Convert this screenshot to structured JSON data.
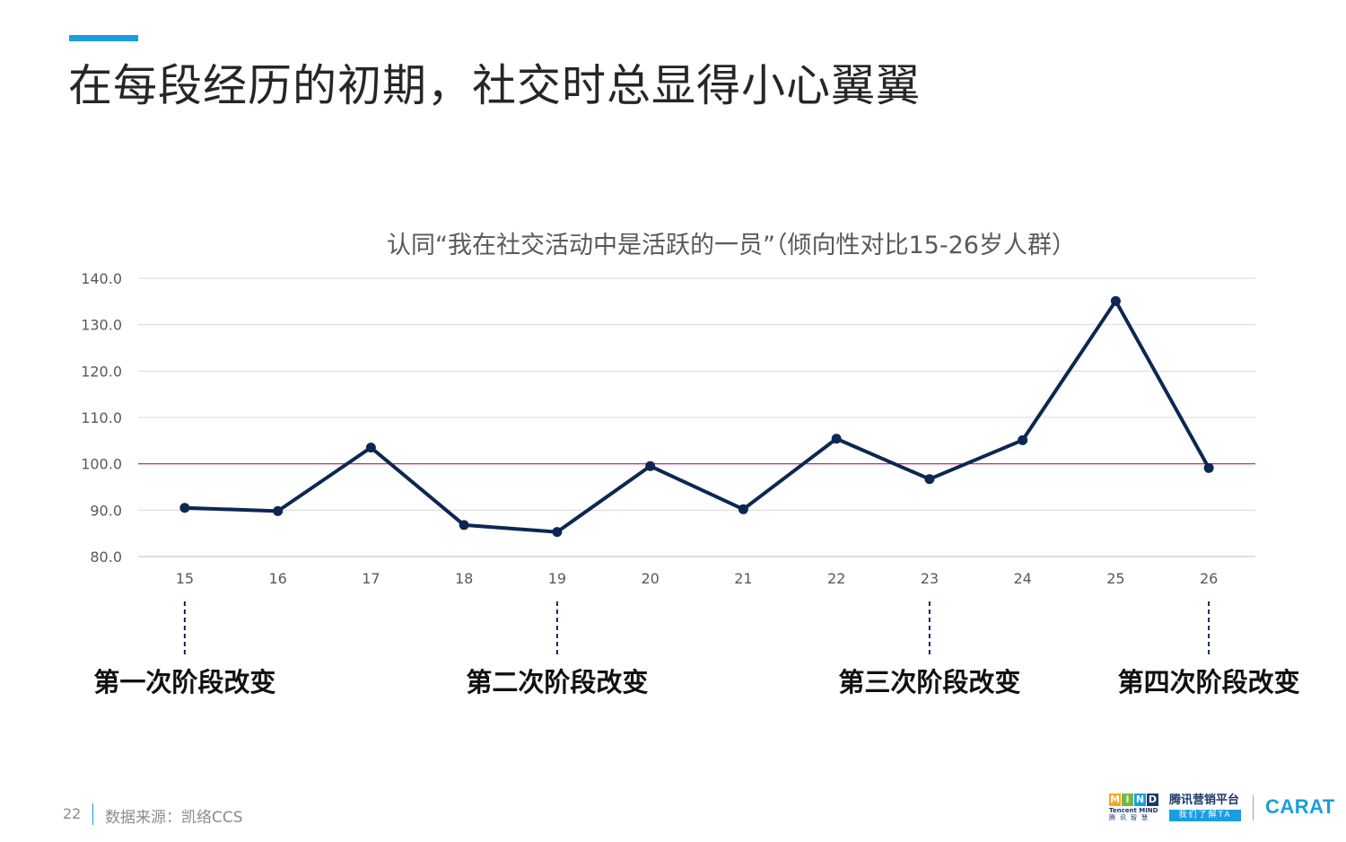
{
  "page": {
    "title": "在每段经历的初期，社交时总显得小心翼翼",
    "accent_color": "#1a9ee0"
  },
  "chart_data": {
    "type": "line",
    "title": "认同“我在社交活动中是活跃的一员”（倾向性对比15-26岁人群）",
    "categories": [
      "15",
      "16",
      "17",
      "18",
      "19",
      "20",
      "21",
      "22",
      "23",
      "24",
      "25",
      "26"
    ],
    "series": [
      {
        "values": [
          90.5,
          89.8,
          103.5,
          86.8,
          85.3,
          99.5,
          90.2,
          105.4,
          96.7,
          105.1,
          135.1,
          99.1
        ],
        "color": "#0d2753"
      }
    ],
    "reference_line": {
      "value": 100.0,
      "color": "#c2185b"
    },
    "ylim": [
      80,
      140
    ],
    "yticks": [
      "80.0",
      "90.0",
      "100.0",
      "110.0",
      "120.0",
      "130.0",
      "140.0"
    ],
    "grid": true,
    "xlabel": "",
    "ylabel": ""
  },
  "stages": [
    {
      "label": "第一次阶段改变",
      "age": "15"
    },
    {
      "label": "第二次阶段改变",
      "age": "19"
    },
    {
      "label": "第三次阶段改变",
      "age": "23"
    },
    {
      "label": "第四次阶段改变",
      "age": "26"
    }
  ],
  "footer": {
    "page_number": "22",
    "source": "数据来源：凯络CCS"
  },
  "logos": {
    "mind_letters": [
      "M",
      "i",
      "N",
      "D"
    ],
    "mind_colors": [
      "#f7a823",
      "#74b843",
      "#1a9ee0",
      "#1b3a6b"
    ],
    "mind_sub": "Tencent MIND",
    "mind_sub2": "腾讯智慧",
    "tencent_top": "腾讯营销平台",
    "tencent_bottom": "我们了解TA",
    "carat": "CARAT"
  }
}
